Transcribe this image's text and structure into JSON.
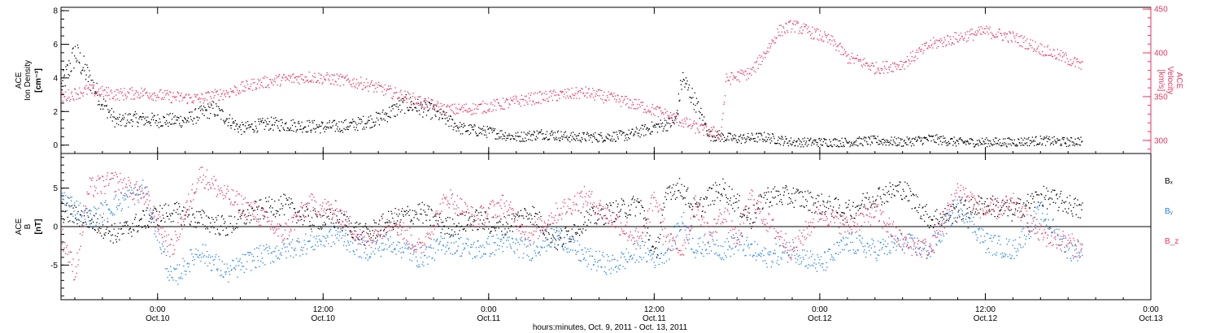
{
  "colors": {
    "density": "#000000",
    "velocity": "#e8365f",
    "bx": "#000000",
    "by": "#1f7fe0",
    "bz": "#e8365f",
    "axis": "#000000"
  },
  "xlabel": "hours:minutes, Oct.  9, 2011 - Oct. 13, 2011",
  "time_ticks": [
    {
      "hours": 12,
      "time": "0:00",
      "day": "Oct.10"
    },
    {
      "hours": 24,
      "time": "12:00",
      "day": "Oct.10"
    },
    {
      "hours": 36,
      "time": "0:00",
      "day": "Oct.11"
    },
    {
      "hours": 48,
      "time": "12:00",
      "day": "Oct.11"
    },
    {
      "hours": 60,
      "time": "0:00",
      "day": "Oct.12"
    },
    {
      "hours": 72,
      "time": "12:00",
      "day": "Oct.12"
    },
    {
      "hours": 84,
      "time": "0:00",
      "day": "Oct.13"
    }
  ],
  "chart_data": [
    {
      "type": "scatter",
      "panel": "plasma",
      "x_unit": "hours since Oct. 9, 2011 12:00",
      "xlim": [
        5,
        84
      ],
      "left_axis": {
        "label_line1": "ACE",
        "label_line2": "Ion Density",
        "unit": "[cm⁻³]",
        "ylim": [
          -0.5,
          8.2
        ],
        "ticks": [
          0,
          2,
          4,
          6,
          8
        ]
      },
      "right_axis": {
        "label_line1": "ACE",
        "label_line2": "Velocity",
        "unit": "[km/s]",
        "ylim": [
          285,
          452
        ],
        "ticks": [
          300,
          350,
          400,
          450
        ]
      },
      "series": [
        {
          "name": "",
          "axis": "left",
          "color_key": "density",
          "x": [
            5,
            6,
            7,
            8,
            9,
            10,
            12,
            14,
            16,
            18,
            20,
            22,
            24,
            26,
            28,
            30,
            32,
            34,
            36,
            38,
            40,
            42,
            44,
            46,
            48,
            49.5,
            50,
            51,
            52,
            53,
            54,
            56,
            58,
            60,
            62,
            64,
            66,
            68,
            70,
            72,
            74,
            76,
            78,
            79
          ],
          "values": [
            3.5,
            5.5,
            4.0,
            2.5,
            1.4,
            1.6,
            1.5,
            1.5,
            2.2,
            1.0,
            1.3,
            1.2,
            1.1,
            1.2,
            1.6,
            2.5,
            2.0,
            1.0,
            0.8,
            0.5,
            0.7,
            0.5,
            0.5,
            0.6,
            1.1,
            1.4,
            4.0,
            2.5,
            0.6,
            0.5,
            0.4,
            0.5,
            0.2,
            0.2,
            0.2,
            0.3,
            0.2,
            0.4,
            0.2,
            0.2,
            0.2,
            0.3,
            0.2,
            0.3
          ]
        },
        {
          "name": "",
          "axis": "right",
          "color_key": "velocity",
          "x": [
            5,
            7,
            9,
            11,
            13,
            15,
            17,
            19,
            21,
            23,
            25,
            27,
            29,
            31,
            33,
            35,
            37,
            39,
            41,
            43,
            45,
            47,
            48.5,
            50,
            51,
            52,
            52.8,
            53.2,
            55,
            56,
            57,
            58,
            60,
            61,
            62,
            63,
            64,
            65,
            66,
            68,
            70,
            72,
            74,
            76,
            78,
            79
          ],
          "values": [
            350,
            358,
            353,
            355,
            350,
            348,
            355,
            365,
            370,
            373,
            370,
            365,
            355,
            345,
            335,
            337,
            342,
            348,
            352,
            355,
            348,
            340,
            332,
            322,
            315,
            310,
            309,
            370,
            378,
            400,
            425,
            432,
            420,
            412,
            395,
            390,
            383,
            385,
            388,
            410,
            418,
            425,
            418,
            405,
            393,
            385
          ]
        }
      ]
    },
    {
      "type": "scatter",
      "panel": "magnetic-field",
      "x_unit": "hours since Oct. 9, 2011 12:00",
      "xlim": [
        5,
        84
      ],
      "left_axis": {
        "label_line1": "ACE",
        "label_line2": "B",
        "unit": "[nT]",
        "ylim": [
          -9.5,
          9.5
        ],
        "ticks": [
          -5,
          0,
          5
        ]
      },
      "legend": [
        "Bₓ",
        "Bᵧ",
        "B_z"
      ],
      "series": [
        {
          "name": "Bₓ",
          "color_key": "bx",
          "x": [
            5,
            7,
            9,
            11,
            13,
            15,
            17,
            19,
            21,
            23,
            25,
            27,
            29,
            31,
            33,
            35,
            37,
            39,
            41,
            43,
            45,
            47,
            48,
            49,
            50,
            51,
            52,
            53,
            54,
            55,
            56,
            58,
            60,
            62,
            64,
            66,
            68,
            70,
            72,
            74,
            76,
            78,
            79
          ],
          "values": [
            2,
            1,
            -1,
            1,
            2,
            1,
            0,
            2,
            3,
            1,
            1,
            -1,
            1,
            2,
            0,
            1,
            0,
            2,
            -2,
            1,
            2,
            3,
            -4,
            5,
            5,
            2,
            4,
            5,
            3,
            1,
            4,
            4,
            3,
            2,
            4,
            5,
            1,
            2,
            3,
            2,
            4,
            3,
            2
          ]
        },
        {
          "name": "Bᵧ",
          "color_key": "by",
          "x": [
            5,
            7,
            9,
            11,
            13,
            15,
            17,
            19,
            21,
            23,
            25,
            27,
            29,
            31,
            33,
            35,
            37,
            39,
            41,
            43,
            45,
            47,
            48,
            49,
            50,
            51,
            52,
            53,
            54,
            55,
            56,
            58,
            60,
            62,
            64,
            66,
            68,
            70,
            72,
            74,
            76,
            78,
            79
          ],
          "values": [
            4,
            1,
            3,
            5,
            -7,
            -3,
            -6,
            -4,
            -3,
            -2,
            -1,
            -3,
            -2,
            -4,
            -2,
            -3,
            -2,
            -3,
            -1,
            -4,
            -5,
            -3,
            -4,
            -3,
            1,
            -3,
            -2,
            -3,
            -2,
            -3,
            -4,
            -3,
            -5,
            -2,
            -3,
            -2,
            -3,
            3,
            -2,
            -3,
            2,
            -3,
            -3
          ]
        },
        {
          "name": "B_z",
          "color_key": "bz",
          "x": [
            5,
            6,
            7,
            9,
            11,
            13,
            15,
            17,
            19,
            21,
            23,
            25,
            27,
            29,
            31,
            33,
            35,
            37,
            39,
            41,
            43,
            45,
            47,
            48,
            49,
            50,
            51,
            52,
            53,
            54,
            55,
            56,
            58,
            60,
            62,
            64,
            66,
            68,
            70,
            72,
            74,
            76,
            78,
            79
          ],
          "values": [
            -1,
            -6,
            5,
            6,
            4,
            -3,
            7,
            4,
            2,
            -1,
            3,
            2,
            -2,
            1,
            -3,
            4,
            1,
            3,
            -1,
            2,
            4,
            1,
            -2,
            4,
            -2,
            -3,
            3,
            -1,
            2,
            -2,
            4,
            1,
            -3,
            2,
            0,
            2,
            -2,
            -3,
            5,
            2,
            3,
            -1,
            -2,
            -3
          ]
        }
      ]
    }
  ]
}
